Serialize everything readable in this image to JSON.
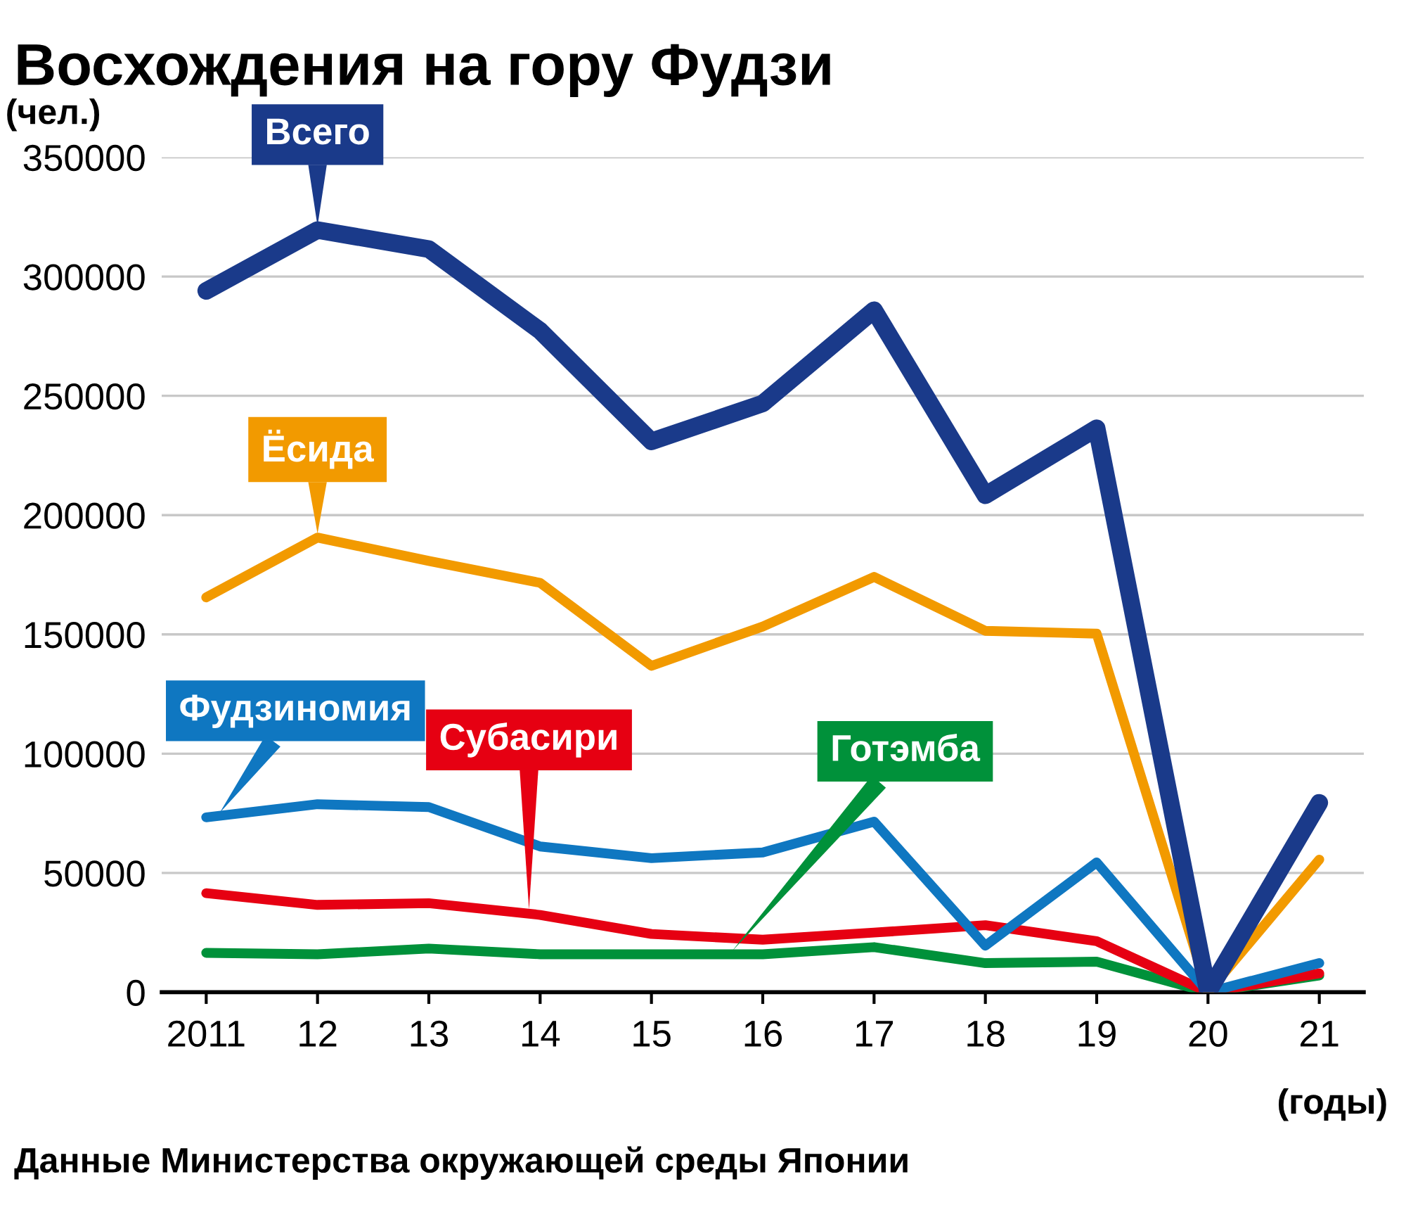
{
  "chart_data": {
    "type": "line",
    "title": "Восхождения на гору Фудзи",
    "ylabel": "(чел.)",
    "xlabel": "(годы)",
    "categories": [
      "2011",
      "12",
      "13",
      "14",
      "15",
      "16",
      "17",
      "18",
      "19",
      "20",
      "21"
    ],
    "series": [
      {
        "name": "Всего",
        "color": "#1a3a8a",
        "values": [
          294000,
          319500,
          311500,
          277300,
          230900,
          246800,
          285900,
          208300,
          236400,
          0,
          79400
        ]
      },
      {
        "name": "Ёсида",
        "color": "#f29a00",
        "values": [
          165500,
          190600,
          180800,
          171600,
          136800,
          153300,
          174100,
          151500,
          150300,
          0,
          55600
        ]
      },
      {
        "name": "Фудзиномия",
        "color": "#0f77c1",
        "values": [
          73300,
          78800,
          77600,
          61100,
          56200,
          58600,
          71500,
          19500,
          54400,
          0,
          12200
        ]
      },
      {
        "name": "Субасири",
        "color": "#e60012",
        "values": [
          41500,
          36600,
          37300,
          32400,
          24400,
          22000,
          25000,
          28100,
          21400,
          0,
          7900
        ]
      },
      {
        "name": "Готэмба",
        "color": "#00913a",
        "values": [
          16500,
          15900,
          18300,
          15900,
          15900,
          15900,
          18900,
          12200,
          12800,
          0,
          7000
        ]
      }
    ],
    "ylim": [
      0,
      350000
    ],
    "yticks": [
      0,
      50000,
      100000,
      150000,
      200000,
      250000,
      300000,
      350000
    ],
    "grid": "y",
    "legend": false,
    "marker": "none",
    "line_style": "solid",
    "annotations": [
      "Данные Министерства окружающей среды Японии"
    ]
  }
}
